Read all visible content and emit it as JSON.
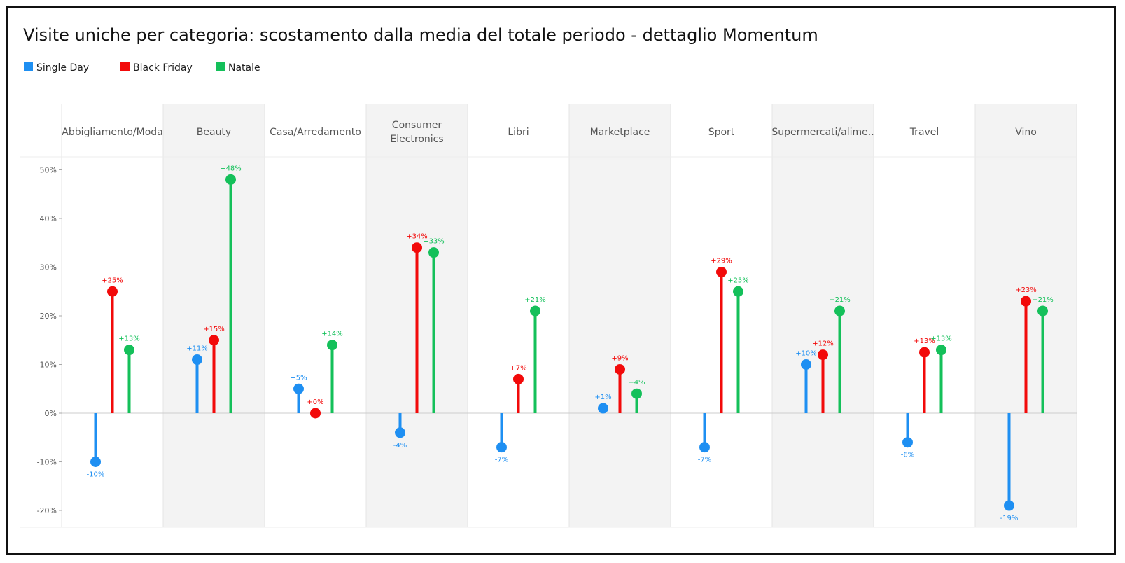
{
  "colors": {
    "Single Day": "#1e8ff2",
    "Black Friday": "#f20a0a",
    "Natale": "#14c05a",
    "band": "#f3f3f3",
    "grid": "#dddddd"
  },
  "chart_data": {
    "type": "lollipop",
    "title": "Visite uniche per categoria: scostamento dalla media del totale periodo - dettaglio Momentum",
    "xlabel": "",
    "ylabel": "",
    "categories": [
      "Abbigliamento/Moda",
      "Beauty",
      "Casa/Arredamento",
      "Consumer Electronics",
      "Libri",
      "Marketplace",
      "Sport",
      "Supermercati/alime..",
      "Travel",
      "Vino"
    ],
    "series": [
      {
        "name": "Single Day",
        "values": [
          -10,
          11,
          5,
          -4,
          -7,
          1,
          -7,
          10,
          -6,
          -19
        ],
        "labels": [
          "-10%",
          "+11%",
          "+5%",
          "-4%",
          "-7%",
          "+1%",
          "-7%",
          "+10%",
          "-6%",
          "-19%"
        ]
      },
      {
        "name": "Black Friday",
        "values": [
          25,
          15,
          0,
          34,
          7,
          9,
          29,
          12,
          12.5,
          23
        ],
        "labels": [
          "+25%",
          "+15%",
          "+0%",
          "+34%",
          "+7%",
          "+9%",
          "+29%",
          "+12%",
          "+13%",
          "+23%"
        ]
      },
      {
        "name": "Natale",
        "values": [
          13,
          48,
          14,
          33,
          21,
          4,
          25,
          21,
          13,
          21
        ],
        "labels": [
          "+13%",
          "+48%",
          "+14%",
          "+33%",
          "+21%",
          "+4%",
          "+25%",
          "+21%",
          "+13%",
          "+21%"
        ]
      }
    ],
    "yticks": [
      50,
      40,
      30,
      20,
      10,
      0,
      -10,
      -20
    ],
    "ytick_labels": [
      "50%",
      "40%",
      "30%",
      "20%",
      "10%",
      "0%",
      "-10%",
      "-20%"
    ],
    "ylim": [
      -23.5,
      52.5
    ],
    "legend_position": "top-left",
    "grid": false
  }
}
